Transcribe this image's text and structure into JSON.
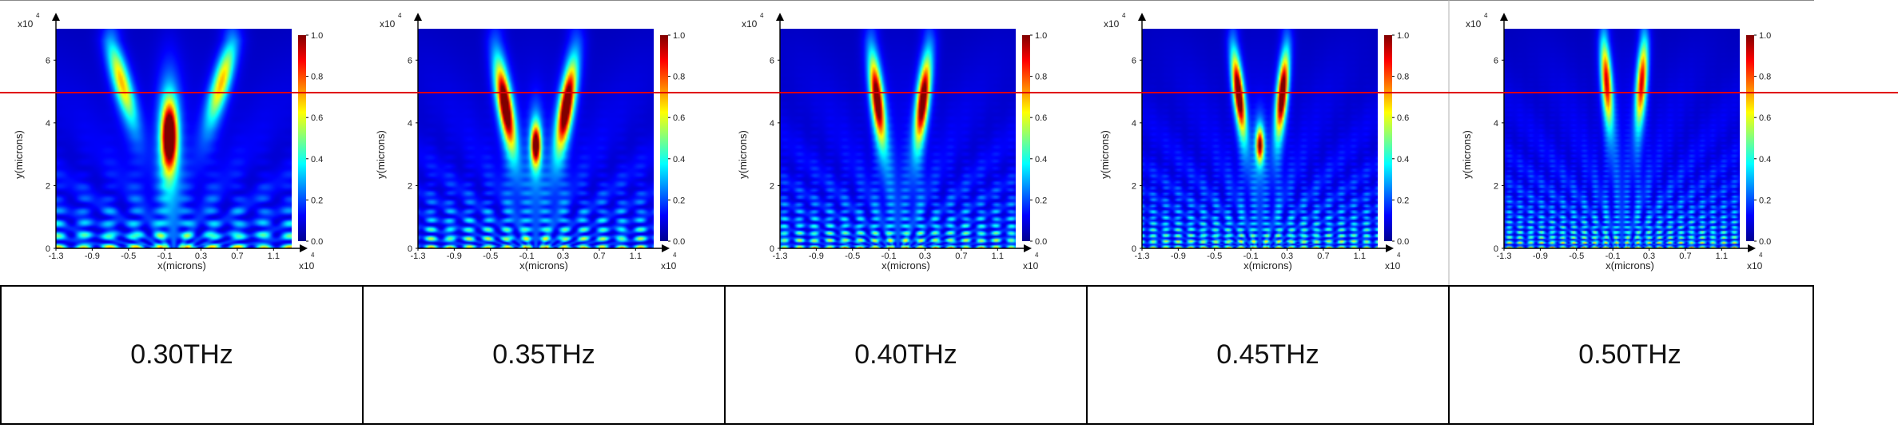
{
  "colors": {
    "marker_line": "#e00000",
    "colormap": [
      "#00008f",
      "#0000ff",
      "#0080ff",
      "#00ffff",
      "#80ff80",
      "#ffff00",
      "#ff8000",
      "#ff0000",
      "#800000"
    ]
  },
  "axis_labels": {
    "x": "x(microns)",
    "y": "y(microns)",
    "x_exponent": "x10",
    "y_exponent": "x10",
    "exponent_power": "4"
  },
  "chart_data": [
    {
      "type": "heatmap",
      "caption": "0.30THz",
      "x_ticks": [
        "-1.3",
        "-0.9",
        "-0.5",
        "-0.1",
        "0.3",
        "0.7",
        "1.1"
      ],
      "y_ticks": [
        "0",
        "2",
        "4",
        "6"
      ],
      "colorbar_ticks": [
        "0.0",
        "0.2",
        "0.4",
        "0.6",
        "0.8",
        "1.0"
      ],
      "xlim": [
        -1.3,
        1.3
      ],
      "ylim": [
        0,
        7
      ],
      "clim": [
        0,
        1
      ],
      "beams": [
        {
          "x_start": -0.05,
          "x_end": -0.05,
          "y_center": 3.6,
          "y_spread": 1.0,
          "width": 0.08,
          "peak": 1.0
        },
        {
          "x_start": -0.1,
          "x_end": -0.7,
          "y_center": 5.4,
          "y_spread": 1.2,
          "width": 0.09,
          "peak": 0.55
        },
        {
          "x_start": 0.05,
          "x_end": 0.65,
          "y_center": 5.4,
          "y_spread": 1.2,
          "width": 0.09,
          "peak": 0.55
        }
      ]
    },
    {
      "type": "heatmap",
      "caption": "0.35THz",
      "x_ticks": [
        "-1.3",
        "-0.9",
        "-0.5",
        "-0.1",
        "0.3",
        "0.7",
        "1.1"
      ],
      "y_ticks": [
        "0",
        "2",
        "4",
        "6"
      ],
      "colorbar_ticks": [
        "0.0",
        "0.2",
        "0.4",
        "0.6",
        "0.8",
        "1.0"
      ],
      "xlim": [
        -1.3,
        1.3
      ],
      "ylim": [
        0,
        7
      ],
      "clim": [
        0,
        1
      ],
      "beams": [
        {
          "x_start": -0.1,
          "x_end": -0.45,
          "y_center": 4.6,
          "y_spread": 1.2,
          "width": 0.07,
          "peak": 0.95
        },
        {
          "x_start": 0.1,
          "x_end": 0.45,
          "y_center": 4.6,
          "y_spread": 1.2,
          "width": 0.07,
          "peak": 0.95
        },
        {
          "x_start": 0.0,
          "x_end": 0.0,
          "y_center": 3.3,
          "y_spread": 0.6,
          "width": 0.05,
          "peak": 0.85
        }
      ]
    },
    {
      "type": "heatmap",
      "caption": "0.40THz",
      "x_ticks": [
        "-1.3",
        "-0.9",
        "-0.5",
        "-0.1",
        "0.3",
        "0.7",
        "1.1"
      ],
      "y_ticks": [
        "0",
        "2",
        "4",
        "6"
      ],
      "colorbar_ticks": [
        "0.0",
        "0.2",
        "0.4",
        "0.6",
        "0.8",
        "1.0"
      ],
      "xlim": [
        -1.3,
        1.3
      ],
      "ylim": [
        0,
        7
      ],
      "clim": [
        0,
        1
      ],
      "beams": [
        {
          "x_start": -0.05,
          "x_end": -0.3,
          "y_center": 4.8,
          "y_spread": 1.2,
          "width": 0.06,
          "peak": 0.9
        },
        {
          "x_start": 0.1,
          "x_end": 0.35,
          "y_center": 4.8,
          "y_spread": 1.2,
          "width": 0.06,
          "peak": 0.9
        }
      ]
    },
    {
      "type": "heatmap",
      "caption": "0.45THz",
      "x_ticks": [
        "-1.3",
        "-0.9",
        "-0.5",
        "-0.1",
        "0.3",
        "0.7",
        "1.1"
      ],
      "y_ticks": [
        "0",
        "2",
        "4",
        "6"
      ],
      "colorbar_ticks": [
        "0.0",
        "0.2",
        "0.4",
        "0.6",
        "0.8",
        "1.0"
      ],
      "xlim": [
        -1.3,
        1.3
      ],
      "ylim": [
        0,
        7
      ],
      "clim": [
        0,
        1
      ],
      "beams": [
        {
          "x_start": -0.05,
          "x_end": -0.3,
          "y_center": 5.0,
          "y_spread": 1.1,
          "width": 0.05,
          "peak": 0.95
        },
        {
          "x_start": 0.1,
          "x_end": 0.3,
          "y_center": 5.0,
          "y_spread": 1.1,
          "width": 0.05,
          "peak": 0.95
        },
        {
          "x_start": 0.0,
          "x_end": 0.0,
          "y_center": 3.3,
          "y_spread": 0.5,
          "width": 0.04,
          "peak": 0.7
        }
      ]
    },
    {
      "type": "heatmap",
      "caption": "0.50THz",
      "x_ticks": [
        "-1.3",
        "-0.9",
        "-0.5",
        "-0.1",
        "0.3",
        "0.7",
        "1.1"
      ],
      "y_ticks": [
        "0",
        "2",
        "4",
        "6"
      ],
      "colorbar_ticks": [
        "0.0",
        "0.2",
        "0.4",
        "0.6",
        "0.8",
        "1.0"
      ],
      "xlim": [
        -1.3,
        1.3
      ],
      "ylim": [
        0,
        7
      ],
      "clim": [
        0,
        1
      ],
      "beams": [
        {
          "x_start": -0.05,
          "x_end": -0.2,
          "y_center": 5.4,
          "y_spread": 1.2,
          "width": 0.05,
          "peak": 0.75
        },
        {
          "x_start": 0.1,
          "x_end": 0.25,
          "y_center": 5.4,
          "y_spread": 1.2,
          "width": 0.05,
          "peak": 0.75
        }
      ]
    }
  ]
}
